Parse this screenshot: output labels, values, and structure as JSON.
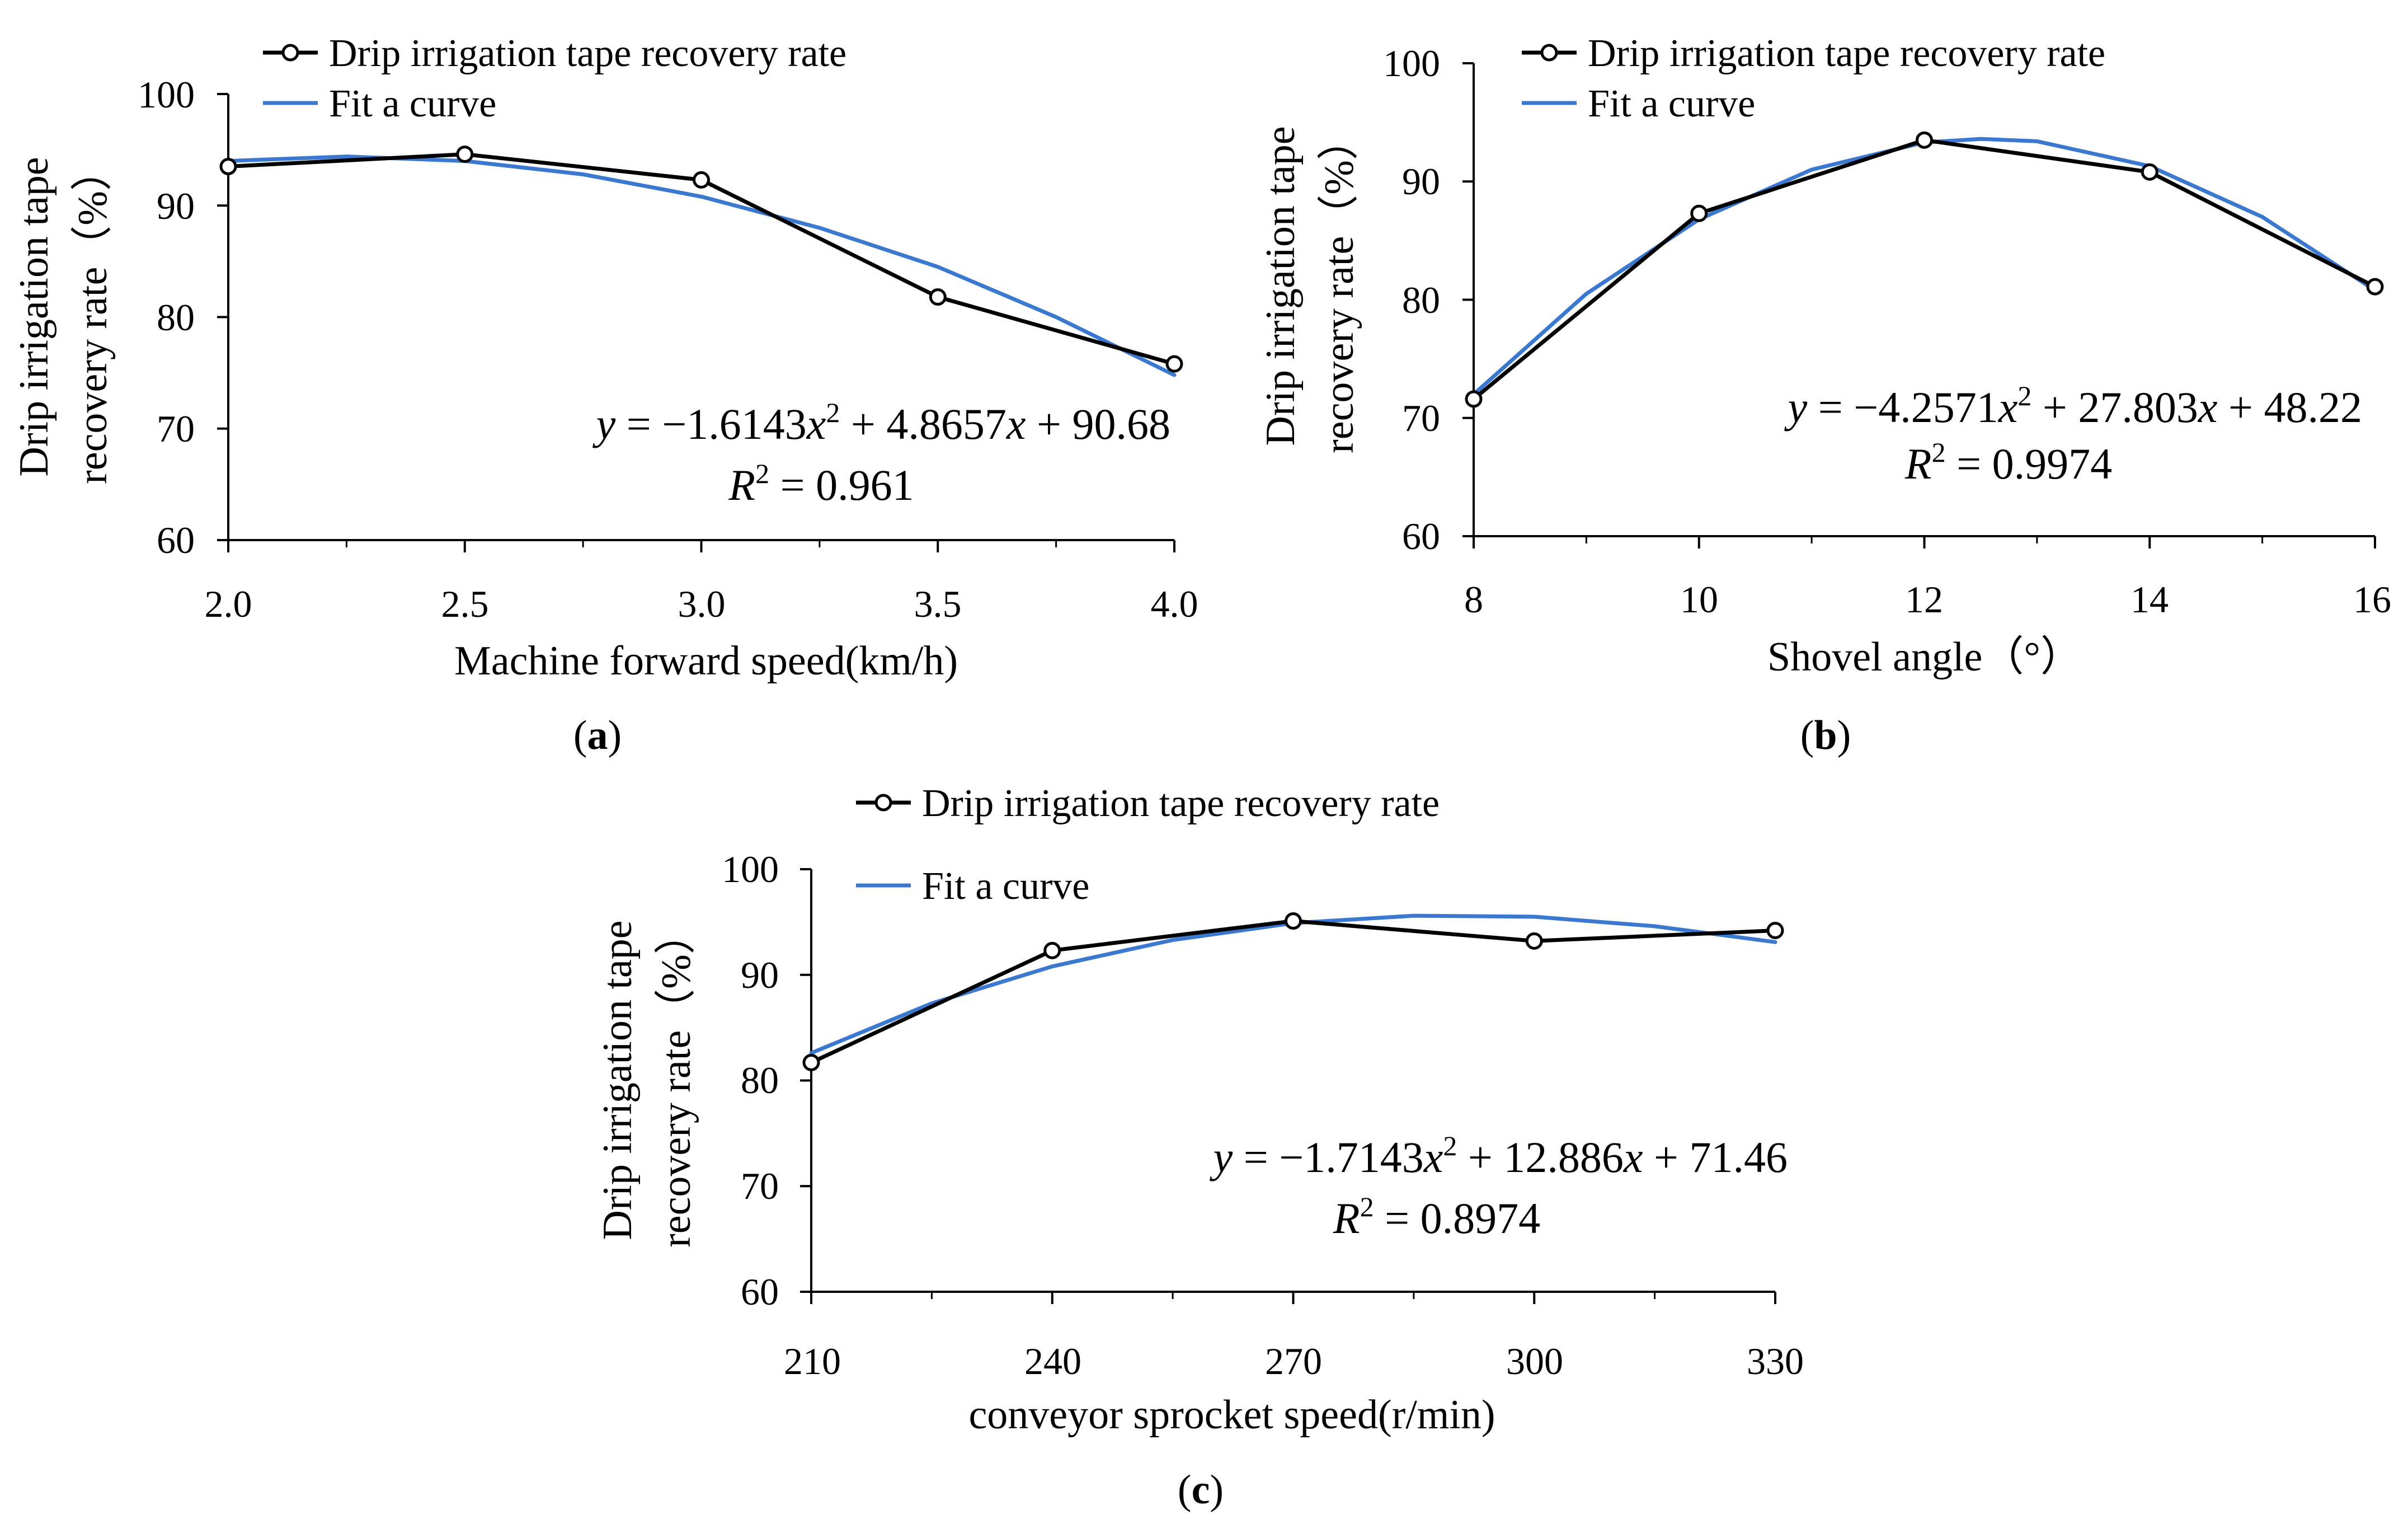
{
  "colors": {
    "data": "#000000",
    "fit": "#3b78d0",
    "background": "#ffffff"
  },
  "chart_data": [
    {
      "panel": "(a)",
      "panel_letter": "a",
      "type": "line",
      "xlabel": "Machine forward speed(km/h)",
      "ylabel_line1": "Drip irrigation tape",
      "ylabel_line2": "recovery rate（%）",
      "xlim": [
        2.0,
        4.0
      ],
      "ylim": [
        60,
        100
      ],
      "xticks": [
        2.0,
        2.5,
        3.0,
        3.5,
        4.0
      ],
      "xtick_labels": [
        "2.0",
        "2.5",
        "3.0",
        "3.5",
        "4.0"
      ],
      "yticks": [
        60,
        70,
        80,
        90,
        100
      ],
      "ytick_labels": [
        "60",
        "70",
        "80",
        "90",
        "100"
      ],
      "series": [
        {
          "name": "Drip irrigation tape recovery rate",
          "x": [
            2.0,
            2.5,
            3.0,
            3.5,
            4.0
          ],
          "values": [
            93.5,
            94.6,
            92.3,
            81.8,
            75.8
          ],
          "marker": "circle"
        },
        {
          "name": "Fit a curve",
          "x": [
            2.0,
            2.25,
            2.5,
            2.75,
            3.0,
            3.25,
            3.5,
            3.75,
            4.0
          ],
          "values": [
            94.0,
            94.4,
            94.0,
            92.8,
            90.8,
            88.0,
            84.5,
            80.0,
            74.8
          ]
        }
      ],
      "equation": {
        "lhs": "y",
        "rest": " = −1.6143",
        "var1": "x",
        "sup": "2",
        "mid": " + 4.8657",
        "var2": "x",
        "tail": " + 90.68"
      },
      "r2": {
        "r": "R",
        "sup": "2",
        "val": " = 0.961"
      }
    },
    {
      "panel": "(b)",
      "panel_letter": "b",
      "type": "line",
      "xlabel": "Shovel angle（°）",
      "ylabel_line1": "Drip irrigation tape",
      "ylabel_line2": "recovery rate（%）",
      "xlim": [
        8,
        16
      ],
      "ylim": [
        60,
        100
      ],
      "xticks": [
        8,
        10,
        12,
        14,
        16
      ],
      "xtick_labels": [
        "8",
        "10",
        "12",
        "14",
        "16"
      ],
      "yticks": [
        60,
        70,
        80,
        90,
        100
      ],
      "ytick_labels": [
        "60",
        "70",
        "80",
        "90",
        "100"
      ],
      "series": [
        {
          "name": "Drip irrigation tape recovery rate",
          "x": [
            8,
            10,
            12,
            14,
            16
          ],
          "values": [
            71.6,
            87.3,
            93.5,
            90.8,
            81.1
          ],
          "marker": "circle"
        },
        {
          "name": "Fit a curve",
          "x": [
            8,
            9,
            10,
            11,
            12,
            12.5,
            13,
            14,
            15,
            16
          ],
          "values": [
            72.0,
            80.5,
            86.8,
            91.0,
            93.3,
            93.6,
            93.4,
            91.3,
            87.0,
            80.8
          ]
        }
      ],
      "equation": {
        "lhs": "y",
        "rest": " = −4.2571",
        "var1": "x",
        "sup": "2",
        "mid": " + 27.803",
        "var2": "x",
        "tail": " + 48.22"
      },
      "r2": {
        "r": "R",
        "sup": "2",
        "val": " = 0.9974"
      }
    },
    {
      "panel": "(c)",
      "panel_letter": "c",
      "type": "line",
      "xlabel": "conveyor sprocket speed(r/min)",
      "ylabel_line1": "Drip irrigation tape",
      "ylabel_line2": "recovery rate（%）",
      "xlim": [
        210,
        330
      ],
      "ylim": [
        60,
        100
      ],
      "xticks": [
        210,
        240,
        270,
        300,
        330
      ],
      "xtick_labels": [
        "210",
        "240",
        "270",
        "300",
        "330"
      ],
      "yticks": [
        60,
        70,
        80,
        90,
        100
      ],
      "ytick_labels": [
        "60",
        "70",
        "80",
        "90",
        "100"
      ],
      "series": [
        {
          "name": "Drip irrigation tape recovery rate",
          "x": [
            210,
            240,
            270,
            300,
            330
          ],
          "values": [
            81.7,
            92.3,
            95.1,
            93.2,
            94.2
          ],
          "marker": "circle"
        },
        {
          "name": "Fit a curve",
          "x": [
            210,
            225,
            240,
            255,
            270,
            285,
            300,
            315,
            330
          ],
          "values": [
            82.6,
            87.3,
            90.8,
            93.3,
            94.9,
            95.6,
            95.5,
            94.6,
            93.1
          ]
        }
      ],
      "equation": {
        "lhs": "y",
        "rest": " = −1.7143",
        "var1": "x",
        "sup": "2",
        "mid": " + 12.886",
        "var2": "x",
        "tail": " + 71.46"
      },
      "r2": {
        "r": "R",
        "sup": "2",
        "val": " = 0.8974"
      }
    }
  ]
}
